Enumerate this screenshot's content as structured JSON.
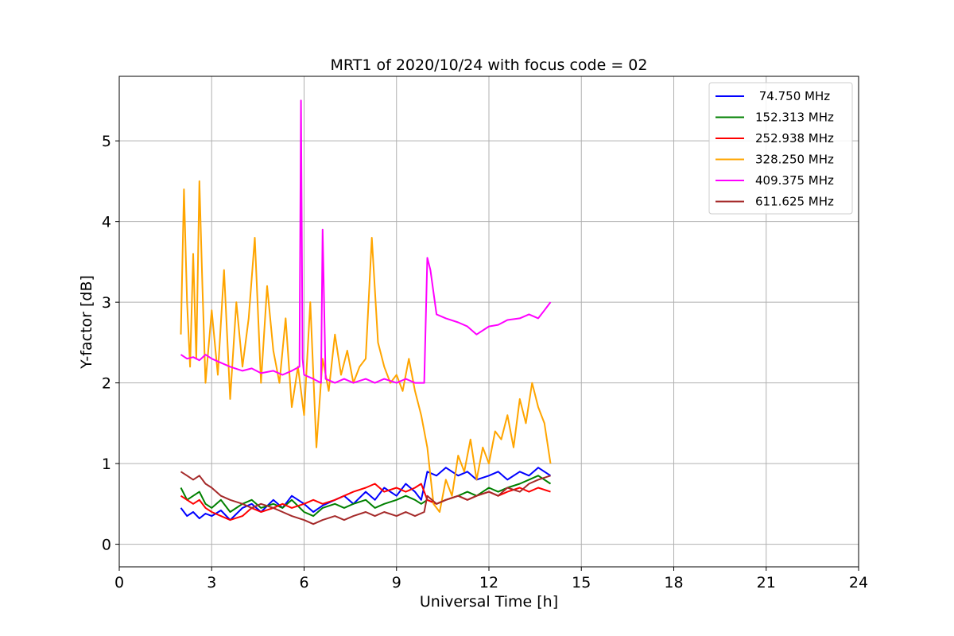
{
  "chart_data": {
    "type": "line",
    "title": "MRT1 of 2020/10/24 with focus code = 02",
    "xlabel": "Universal Time [h]",
    "ylabel": "Y-factor [dB]",
    "xlim": [
      0,
      24
    ],
    "ylim": [
      -0.28,
      5.8
    ],
    "xticks": [
      0,
      3,
      6,
      9,
      12,
      15,
      18,
      21,
      24
    ],
    "yticks": [
      0,
      1,
      2,
      3,
      4,
      5
    ],
    "grid": true,
    "legend_position": "top-right",
    "series": [
      {
        "name": " 74.750 MHz",
        "color": "#0000ff",
        "x": [
          2.0,
          2.2,
          2.4,
          2.6,
          2.8,
          3.0,
          3.3,
          3.6,
          4.0,
          4.3,
          4.6,
          5.0,
          5.3,
          5.6,
          6.0,
          6.3,
          6.6,
          7.0,
          7.3,
          7.6,
          8.0,
          8.3,
          8.6,
          9.0,
          9.3,
          9.6,
          9.8,
          10.0,
          10.3,
          10.6,
          11.0,
          11.3,
          11.6,
          12.0,
          12.3,
          12.6,
          13.0,
          13.3,
          13.6,
          14.0
        ],
        "y": [
          0.45,
          0.35,
          0.4,
          0.32,
          0.38,
          0.35,
          0.42,
          0.3,
          0.45,
          0.5,
          0.4,
          0.55,
          0.45,
          0.6,
          0.5,
          0.4,
          0.48,
          0.55,
          0.6,
          0.5,
          0.65,
          0.55,
          0.7,
          0.6,
          0.75,
          0.65,
          0.55,
          0.9,
          0.85,
          0.95,
          0.85,
          0.9,
          0.8,
          0.85,
          0.9,
          0.8,
          0.9,
          0.85,
          0.95,
          0.85
        ]
      },
      {
        "name": "152.313 MHz",
        "color": "#008000",
        "x": [
          2.0,
          2.2,
          2.4,
          2.6,
          2.8,
          3.0,
          3.3,
          3.6,
          4.0,
          4.3,
          4.6,
          5.0,
          5.3,
          5.6,
          6.0,
          6.3,
          6.6,
          7.0,
          7.3,
          7.6,
          8.0,
          8.3,
          8.6,
          9.0,
          9.3,
          9.6,
          9.8,
          10.0,
          10.3,
          10.6,
          11.0,
          11.3,
          11.6,
          12.0,
          12.3,
          12.6,
          13.0,
          13.3,
          13.6,
          14.0
        ],
        "y": [
          0.7,
          0.55,
          0.6,
          0.65,
          0.5,
          0.45,
          0.55,
          0.4,
          0.5,
          0.55,
          0.45,
          0.5,
          0.45,
          0.55,
          0.4,
          0.35,
          0.45,
          0.5,
          0.45,
          0.5,
          0.55,
          0.45,
          0.5,
          0.55,
          0.6,
          0.55,
          0.5,
          0.55,
          0.5,
          0.55,
          0.6,
          0.65,
          0.6,
          0.7,
          0.65,
          0.7,
          0.75,
          0.8,
          0.85,
          0.75
        ]
      },
      {
        "name": "252.938 MHz",
        "color": "#ff0000",
        "x": [
          2.0,
          2.2,
          2.4,
          2.6,
          2.8,
          3.0,
          3.3,
          3.6,
          4.0,
          4.3,
          4.6,
          5.0,
          5.3,
          5.6,
          6.0,
          6.3,
          6.6,
          7.0,
          7.3,
          7.6,
          8.0,
          8.3,
          8.6,
          9.0,
          9.3,
          9.6,
          9.8,
          10.0,
          10.3,
          10.6,
          11.0,
          11.3,
          11.6,
          12.0,
          12.3,
          12.6,
          13.0,
          13.3,
          13.6,
          14.0
        ],
        "y": [
          0.6,
          0.55,
          0.5,
          0.55,
          0.45,
          0.4,
          0.35,
          0.3,
          0.35,
          0.45,
          0.4,
          0.45,
          0.5,
          0.45,
          0.5,
          0.55,
          0.5,
          0.55,
          0.6,
          0.65,
          0.7,
          0.75,
          0.65,
          0.7,
          0.65,
          0.7,
          0.75,
          0.55,
          0.5,
          0.55,
          0.6,
          0.55,
          0.6,
          0.65,
          0.6,
          0.65,
          0.7,
          0.65,
          0.7,
          0.65
        ]
      },
      {
        "name": "328.250 MHz",
        "color": "#ffa500",
        "x": [
          2.0,
          2.1,
          2.2,
          2.3,
          2.4,
          2.5,
          2.6,
          2.7,
          2.8,
          3.0,
          3.2,
          3.4,
          3.6,
          3.8,
          4.0,
          4.2,
          4.4,
          4.6,
          4.8,
          5.0,
          5.2,
          5.4,
          5.6,
          5.8,
          6.0,
          6.2,
          6.4,
          6.6,
          6.8,
          7.0,
          7.2,
          7.4,
          7.6,
          7.8,
          8.0,
          8.2,
          8.4,
          8.6,
          8.8,
          9.0,
          9.2,
          9.4,
          9.6,
          9.8,
          10.0,
          10.2,
          10.4,
          10.6,
          10.8,
          11.0,
          11.2,
          11.4,
          11.6,
          11.8,
          12.0,
          12.2,
          12.4,
          12.6,
          12.8,
          13.0,
          13.2,
          13.4,
          13.6,
          13.8,
          14.0
        ],
        "y": [
          2.6,
          4.4,
          3.0,
          2.2,
          3.6,
          2.3,
          4.5,
          3.2,
          2.0,
          2.9,
          2.1,
          3.4,
          1.8,
          3.0,
          2.2,
          2.8,
          3.8,
          2.0,
          3.2,
          2.4,
          2.0,
          2.8,
          1.7,
          2.2,
          1.6,
          3.0,
          1.2,
          2.3,
          1.9,
          2.6,
          2.1,
          2.4,
          2.0,
          2.2,
          2.3,
          3.8,
          2.5,
          2.2,
          2.0,
          2.1,
          1.9,
          2.3,
          1.9,
          1.6,
          1.2,
          0.5,
          0.4,
          0.8,
          0.6,
          1.1,
          0.9,
          1.3,
          0.8,
          1.2,
          1.0,
          1.4,
          1.3,
          1.6,
          1.2,
          1.8,
          1.5,
          2.0,
          1.7,
          1.5,
          1.0
        ]
      },
      {
        "name": "409.375 MHz",
        "color": "#ff00ff",
        "x": [
          2.0,
          2.2,
          2.4,
          2.6,
          2.8,
          3.0,
          3.3,
          3.6,
          4.0,
          4.3,
          4.6,
          5.0,
          5.3,
          5.6,
          5.85,
          5.9,
          5.95,
          6.0,
          6.3,
          6.55,
          6.6,
          6.7,
          7.0,
          7.3,
          7.6,
          8.0,
          8.3,
          8.6,
          9.0,
          9.3,
          9.6,
          9.9,
          10.0,
          10.1,
          10.3,
          10.6,
          11.0,
          11.3,
          11.6,
          12.0,
          12.3,
          12.6,
          13.0,
          13.3,
          13.6,
          13.8,
          14.0
        ],
        "y": [
          2.35,
          2.3,
          2.32,
          2.28,
          2.35,
          2.3,
          2.25,
          2.2,
          2.15,
          2.18,
          2.12,
          2.15,
          2.1,
          2.15,
          2.2,
          5.5,
          2.3,
          2.1,
          2.05,
          2.0,
          3.9,
          2.05,
          2.0,
          2.05,
          2.0,
          2.05,
          2.0,
          2.05,
          2.0,
          2.05,
          2.0,
          2.0,
          3.55,
          3.4,
          2.85,
          2.8,
          2.75,
          2.7,
          2.6,
          2.7,
          2.72,
          2.78,
          2.8,
          2.85,
          2.8,
          2.9,
          3.0
        ]
      },
      {
        "name": "611.625 MHz",
        "color": "#a52a2a",
        "x": [
          2.0,
          2.2,
          2.4,
          2.6,
          2.8,
          3.0,
          3.3,
          3.6,
          4.0,
          4.3,
          4.6,
          5.0,
          5.3,
          5.6,
          6.0,
          6.3,
          6.6,
          7.0,
          7.3,
          7.6,
          8.0,
          8.3,
          8.6,
          9.0,
          9.3,
          9.6,
          9.9,
          10.0,
          10.3,
          10.6,
          11.0,
          11.3,
          11.6,
          12.0,
          12.3,
          12.6,
          13.0,
          13.3,
          13.6,
          14.0
        ],
        "y": [
          0.9,
          0.85,
          0.8,
          0.85,
          0.75,
          0.7,
          0.6,
          0.55,
          0.5,
          0.45,
          0.5,
          0.45,
          0.4,
          0.35,
          0.3,
          0.25,
          0.3,
          0.35,
          0.3,
          0.35,
          0.4,
          0.35,
          0.4,
          0.35,
          0.4,
          0.35,
          0.4,
          0.6,
          0.5,
          0.55,
          0.6,
          0.55,
          0.6,
          0.65,
          0.6,
          0.7,
          0.65,
          0.75,
          0.8,
          0.85
        ]
      }
    ]
  }
}
